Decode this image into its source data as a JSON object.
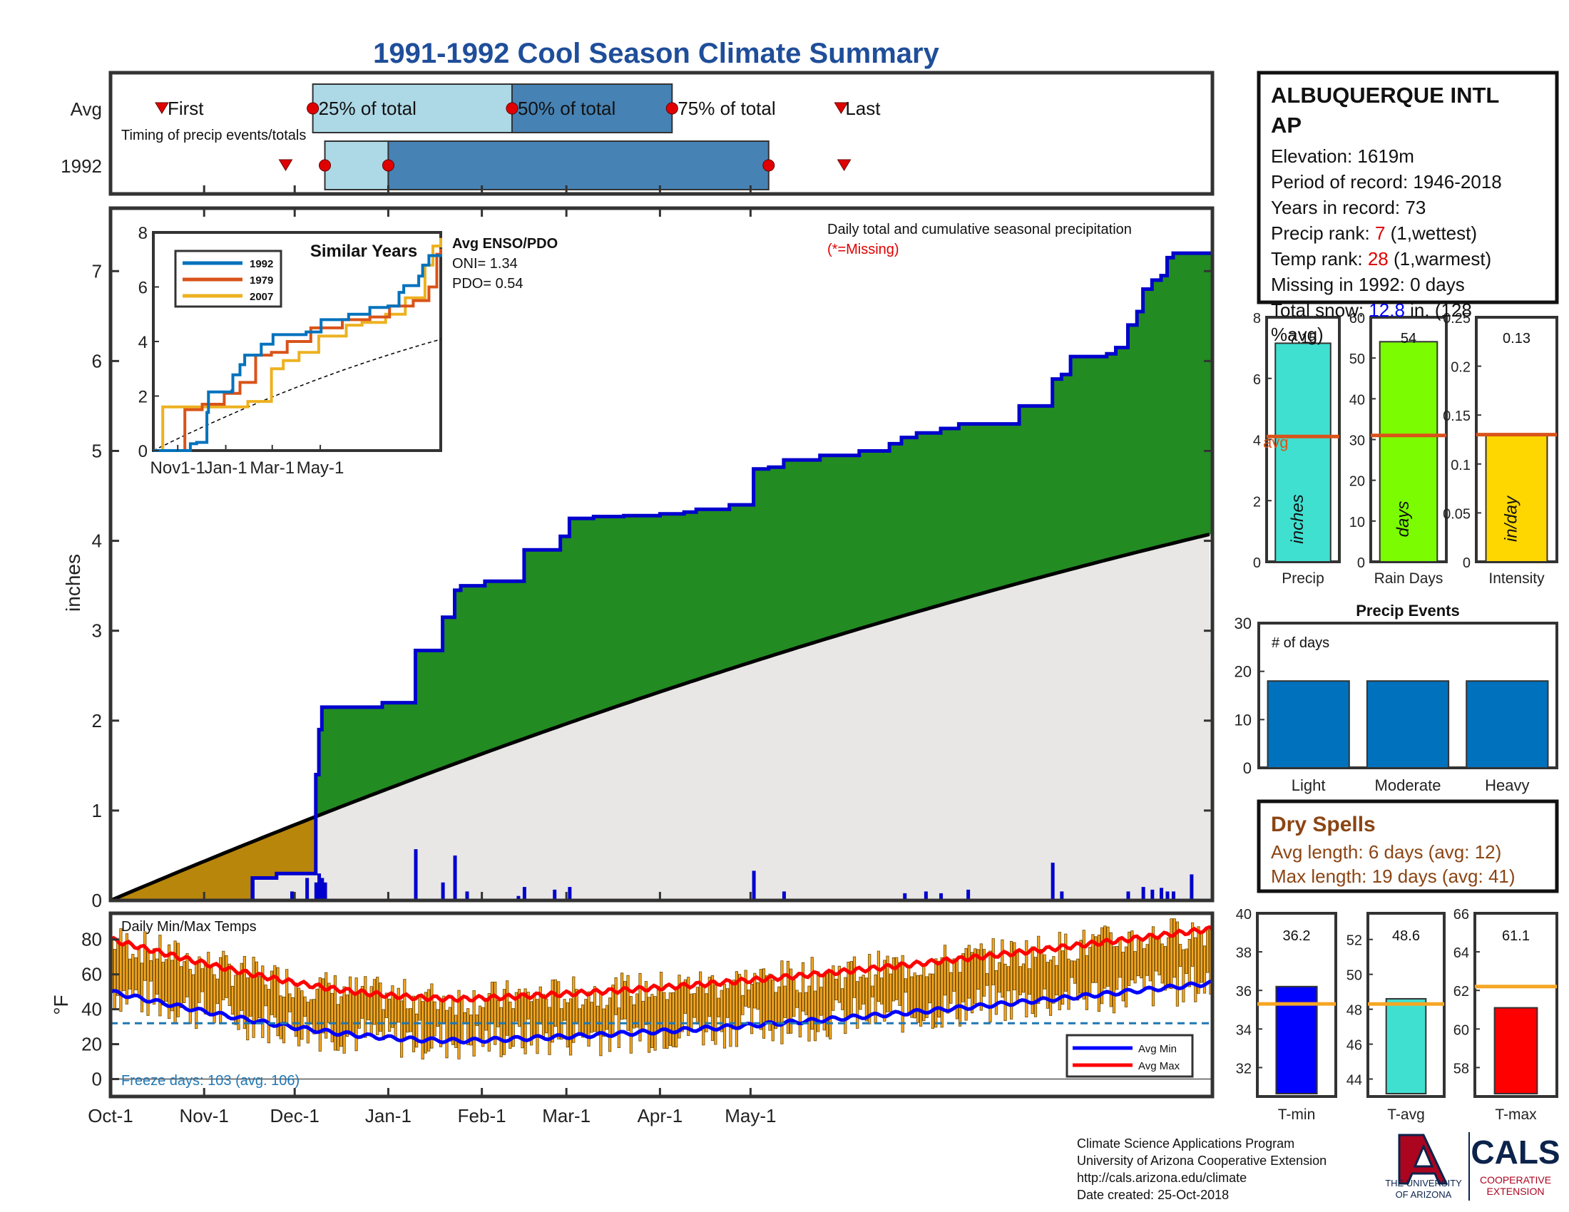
{
  "title": "1991-1992 Cool Season Climate Summary",
  "timing": {
    "row_labels": [
      "Avg",
      "1992"
    ],
    "label": "Timing of precip events/totals",
    "marker_labels": [
      "First",
      "25% of total",
      "50% of total",
      "75% of total",
      "Last"
    ],
    "avg": {
      "first": "Oct-18",
      "q25": "Dec-7",
      "q50": "Feb-11",
      "q75": "Apr-5",
      "last": "May-31"
    },
    "y1992": {
      "first": "Nov-28",
      "q25": "Dec-11",
      "q50": "Jan-1",
      "q75": "May-7",
      "last": "Jun-1"
    }
  },
  "station": {
    "name": "ALBUQUERQUE INTL AP",
    "elevation": "Elevation: 1619m",
    "period": "Period of record: 1946-2018",
    "years": "Years in record: 73",
    "precip_rank_pre": "Precip rank: ",
    "precip_rank_val": "7",
    "precip_rank_post": " (1,wettest)",
    "temp_rank_pre": "Temp rank: ",
    "temp_rank_val": "28",
    "temp_rank_post": " (1,warmest)",
    "missing": "Missing in 1992: 0 days",
    "snow_pre": "Total snow: ",
    "snow_val": "12.8",
    "snow_post": " in. (128",
    "snow_post2": "%avg)"
  },
  "main_chart": {
    "ylabel": "inches",
    "annotation": "Daily total and cumulative seasonal precipitation",
    "missing_note": "(*=Missing)",
    "x_ticks": [
      "Oct-1",
      "Nov-1",
      "Dec-1",
      "Jan-1",
      "Feb-1",
      "Mar-1",
      "Apr-1",
      "May-1"
    ],
    "y_ticks": [
      0,
      1,
      2,
      3,
      4,
      5,
      6,
      7
    ],
    "ylim": [
      0,
      7.7
    ],
    "cumulative_1992": [
      [
        0,
        0
      ],
      [
        14,
        0
      ],
      [
        46,
        0
      ],
      [
        47,
        0.25
      ],
      [
        53,
        0.25
      ],
      [
        55,
        0.3
      ],
      [
        65,
        0.3
      ],
      [
        68,
        1.4
      ],
      [
        69,
        1.9
      ],
      [
        70,
        2.15
      ],
      [
        85,
        2.15
      ],
      [
        90,
        2.2
      ],
      [
        100,
        2.2
      ],
      [
        101,
        2.78
      ],
      [
        109,
        2.78
      ],
      [
        110,
        3.15
      ],
      [
        114,
        3.45
      ],
      [
        116,
        3.5
      ],
      [
        122,
        3.5
      ],
      [
        124,
        3.55
      ],
      [
        135,
        3.55
      ],
      [
        137,
        3.9
      ],
      [
        147,
        3.9
      ],
      [
        149,
        4.05
      ],
      [
        152,
        4.25
      ],
      [
        160,
        4.27
      ],
      [
        170,
        4.28
      ],
      [
        182,
        4.3
      ],
      [
        190,
        4.32
      ],
      [
        194,
        4.35
      ],
      [
        205,
        4.4
      ],
      [
        213,
        4.8
      ],
      [
        218,
        4.82
      ],
      [
        223,
        4.9
      ],
      [
        230,
        4.9
      ],
      [
        235,
        4.95
      ],
      [
        248,
        5.0
      ],
      [
        258,
        5.08
      ],
      [
        262,
        5.15
      ],
      [
        267,
        5.2
      ],
      [
        275,
        5.25
      ],
      [
        281,
        5.3
      ],
      [
        298,
        5.3
      ],
      [
        301,
        5.5
      ],
      [
        307,
        5.5
      ],
      [
        312,
        5.8
      ],
      [
        315,
        5.85
      ],
      [
        318,
        6.05
      ],
      [
        324,
        6.05
      ],
      [
        330,
        6.08
      ],
      [
        333,
        6.15
      ],
      [
        337,
        6.4
      ],
      [
        340,
        6.55
      ],
      [
        342,
        6.8
      ],
      [
        345,
        6.9
      ],
      [
        348,
        6.95
      ],
      [
        350,
        7.15
      ],
      [
        352,
        7.2
      ],
      [
        358,
        7.2
      ]
    ],
    "avg_cumulative_end": 4.08,
    "daily_precip_1992": [
      [
        47,
        0.25
      ],
      [
        60,
        0.1
      ],
      [
        65,
        0.25
      ],
      [
        68,
        0.2
      ],
      [
        69,
        0.3
      ],
      [
        70,
        0.25
      ],
      [
        71,
        0.2
      ],
      [
        101,
        0.57
      ],
      [
        110,
        0.2
      ],
      [
        114,
        0.5
      ],
      [
        118,
        0.1
      ],
      [
        135,
        0.05
      ],
      [
        137,
        0.15
      ],
      [
        147,
        0.12
      ],
      [
        152,
        0.15
      ],
      [
        213,
        0.33
      ],
      [
        223,
        0.1
      ],
      [
        263,
        0.08
      ],
      [
        270,
        0.1
      ],
      [
        275,
        0.08
      ],
      [
        284,
        0.12
      ],
      [
        312,
        0.42
      ],
      [
        315,
        0.1
      ],
      [
        337,
        0.1
      ],
      [
        342,
        0.15
      ],
      [
        345,
        0.12
      ],
      [
        348,
        0.14
      ],
      [
        350,
        0.1
      ],
      [
        352,
        0.1
      ],
      [
        358,
        0.29
      ]
    ]
  },
  "similar_years": {
    "title": "Similar Years",
    "series": [
      {
        "name": "1992",
        "color": "#0072bd"
      },
      {
        "name": "1979",
        "color": "#d95319"
      },
      {
        "name": "2007",
        "color": "#edb120"
      }
    ],
    "y_ticks": [
      0,
      2,
      4,
      6,
      8
    ],
    "x_ticks": [
      "Nov1-1",
      "Jan-1",
      "Mar-1",
      "May-1"
    ],
    "enso_title": "Avg ENSO/PDO",
    "oni": "ONI= 1.34",
    "pdo": "PDO= 0.54"
  },
  "bars_top": [
    {
      "label": "Precip",
      "unit": "inches",
      "value": 7.15,
      "value_text": "7.15",
      "avg": 4.1,
      "avg_label": "avg",
      "color": "#40e0d0",
      "ylim": [
        0,
        8
      ],
      "ticks": [
        0,
        2,
        4,
        6,
        8
      ]
    },
    {
      "label": "Rain Days",
      "unit": "days",
      "value": 54,
      "value_text": "54",
      "avg": 31,
      "color": "#7cfc00",
      "ylim": [
        0,
        60
      ],
      "ticks": [
        0,
        10,
        20,
        30,
        40,
        50,
        60
      ]
    },
    {
      "label": "Intensity",
      "unit": "in/day",
      "value": 0.13,
      "value_text": "0.13",
      "avg": 0.13,
      "color": "#ffd700",
      "ylim": [
        0,
        0.25
      ],
      "ticks": [
        "0",
        "0.05",
        "0.1",
        "0.15",
        "0.2",
        "0.25"
      ]
    }
  ],
  "precip_events": {
    "title": "Precip Events",
    "ylabel": "# of days",
    "categories": [
      "Light",
      "Moderate",
      "Heavy"
    ],
    "values": [
      18,
      18,
      18
    ],
    "ylim": [
      0,
      30
    ],
    "ticks": [
      0,
      10,
      20,
      30
    ],
    "color": "#0072bd"
  },
  "dry_spells": {
    "title": "Dry Spells",
    "avg_length": "Avg length: 6 days (avg: 12)",
    "max_length": "Max length: 19 days (avg: 41)",
    "color": "#8b4513"
  },
  "temps": {
    "title": "Daily Min/Max Temps",
    "ylabel": "°F",
    "y_ticks": [
      0,
      20,
      40,
      60,
      80
    ],
    "ylim": [
      -10,
      95
    ],
    "freeze_line": 32,
    "freeze_text": "Freeze days: 103 (avg. 106)",
    "legend": [
      "Avg Min",
      "Avg Max"
    ],
    "avg_min_start": 50,
    "avg_min_low": 22,
    "avg_min_end": 55,
    "avg_max_start": 80,
    "avg_max_low": 46,
    "avg_max_end": 86
  },
  "temp_bars": [
    {
      "label": "T-min",
      "value": 36.2,
      "value_text": "36.2",
      "avg": 35.3,
      "color": "#0000ff",
      "ylim": [
        30.5,
        40
      ],
      "ticks": [
        32,
        34,
        36,
        38,
        40
      ]
    },
    {
      "label": "T-avg",
      "value": 48.6,
      "value_text": "48.6",
      "avg": 48.3,
      "color": "#40e0d0",
      "ylim": [
        43,
        53.5
      ],
      "ticks": [
        44,
        46,
        48,
        50,
        52
      ]
    },
    {
      "label": "T-max",
      "value": 61.1,
      "value_text": "61.1",
      "avg": 62.2,
      "color": "#ff0000",
      "ylim": [
        56.5,
        66
      ],
      "ticks": [
        58,
        60,
        62,
        64,
        66
      ]
    }
  ],
  "credits": {
    "line1": "Climate Science Applications Program",
    "line2": "University of Arizona Cooperative Extension",
    "line3": "http://cals.arizona.edu/climate",
    "line4": " Date created: 25-Oct-2018"
  },
  "logos": {
    "ua_text1": "THE UNIVERSITY",
    "ua_text2": "OF ARIZONA",
    "cals": "CALS",
    "coop1": "COOPERATIVE",
    "coop2": "EXTENSION"
  }
}
